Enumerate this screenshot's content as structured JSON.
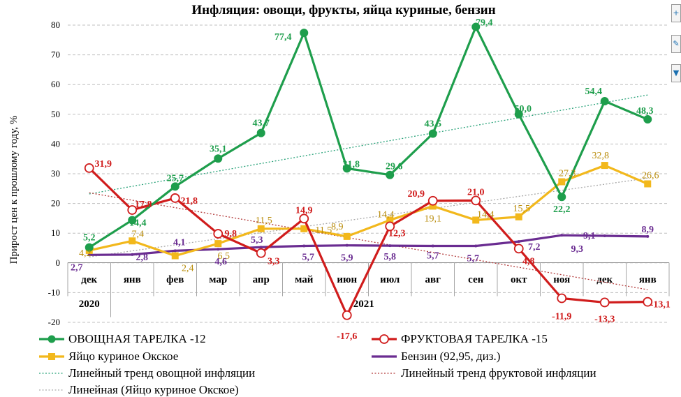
{
  "chart_data": {
    "type": "line",
    "title": "Инфляция: овощи, фрукты, яйца куриные, бензин",
    "ylabel": "Прирост цен к прошлому году, %",
    "xlabel": "",
    "ylim": [
      -20,
      80
    ],
    "yticks": [
      "80",
      "70",
      "60",
      "50",
      "40",
      "30",
      "20",
      "10",
      "0",
      "-10",
      "-20"
    ],
    "ytick_values": [
      80,
      70,
      60,
      50,
      40,
      30,
      20,
      10,
      0,
      -10,
      -20
    ],
    "categories": [
      "дек",
      "янв",
      "фев",
      "мар",
      "апр",
      "май",
      "июн",
      "июл",
      "авг",
      "сен",
      "окт",
      "ноя",
      "дек",
      "янв"
    ],
    "year_labels": [
      "2020",
      "2021"
    ],
    "grid": true,
    "legend_position": "bottom",
    "series": [
      {
        "name": "ОВОЩНАЯ ТАРЕЛКА -12",
        "color": "#1e9e4c",
        "marker": "circle-filled",
        "values": [
          5.2,
          14.4,
          25.7,
          35.1,
          43.7,
          77.4,
          31.8,
          29.6,
          43.5,
          79.4,
          50.0,
          22.2,
          54.4,
          48.3
        ],
        "labels": [
          "5,2",
          "14,4",
          "25,7",
          "35,1",
          "43,7",
          "77,4",
          "31,8",
          "29,6",
          "43,5",
          "79,4",
          "50,0",
          "22,2",
          "54,4",
          "48,3"
        ]
      },
      {
        "name": "ФРУКТОВАЯ ТАРЕЛКА -15",
        "color": "#d01c1c",
        "marker": "circle-open",
        "values": [
          31.9,
          17.8,
          21.8,
          9.8,
          3.3,
          14.9,
          -17.6,
          12.3,
          20.9,
          21.0,
          4.8,
          -11.9,
          -13.3,
          -13.1
        ],
        "labels": [
          "31,9",
          "17,8",
          "21,8",
          "9,8",
          "3,3",
          "14,9",
          "-17,6",
          "12,3",
          "20,9",
          "21,0",
          "4,8",
          "-11,9",
          "-13,3",
          "-13,1"
        ]
      },
      {
        "name": "Яйцо куриное Окское",
        "color": "#f2b81c",
        "label_color": "#b98c0a",
        "marker": "square",
        "values": [
          4.2,
          7.4,
          2.4,
          6.5,
          11.5,
          11.5,
          8.9,
          14.4,
          19.1,
          14.4,
          15.5,
          27.3,
          32.8,
          26.6
        ],
        "labels": [
          "4,2",
          "7,4",
          "2,4",
          "6,5",
          "11,5",
          "11,5",
          "8,9",
          "14,4",
          "19,1",
          "14,4",
          "15,5",
          "27,3",
          "32,8",
          "26,6"
        ]
      },
      {
        "name": "Бензин (92,95, диз.)",
        "color": "#6a2c91",
        "marker": "none",
        "values": [
          2.7,
          2.8,
          4.1,
          4.6,
          5.3,
          5.7,
          5.9,
          5.8,
          5.7,
          5.7,
          7.2,
          9.3,
          9.1,
          8.9
        ],
        "labels": [
          "2,7",
          "2,8",
          "4,1",
          "4,6",
          "5,3",
          "5,7",
          "5,9",
          "5,8",
          "5,7",
          "5,7",
          "7,2",
          "9,3",
          "9,1",
          "8,9"
        ]
      }
    ],
    "trendlines": [
      {
        "name": "Линейный тренд овощной инфляции",
        "color": "#2aa37a",
        "from": 23.2,
        "to": 56.5
      },
      {
        "name": "Линейный тренд фруктовой инфляции",
        "color": "#b23a3a",
        "from": 23.6,
        "to": -9.0
      },
      {
        "name": "Линейная (Яйцо куриное Окское)",
        "color": "#aaaaaa",
        "from": 2.0,
        "to": 28.5
      }
    ],
    "legend": {
      "veg": "ОВОЩНАЯ ТАРЕЛКА -12",
      "fruit": "ФРУКТОВАЯ ТАРЕЛКА -15",
      "egg": "Яйцо куриное Окское",
      "fuel": "Бензин (92,95, диз.)",
      "veg_trend": "Линейный тренд овощной инфляции",
      "fruit_trend": "Линейный тренд фруктовой инфляции",
      "egg_trend": "Линейная (Яйцо куриное Окское)"
    }
  }
}
